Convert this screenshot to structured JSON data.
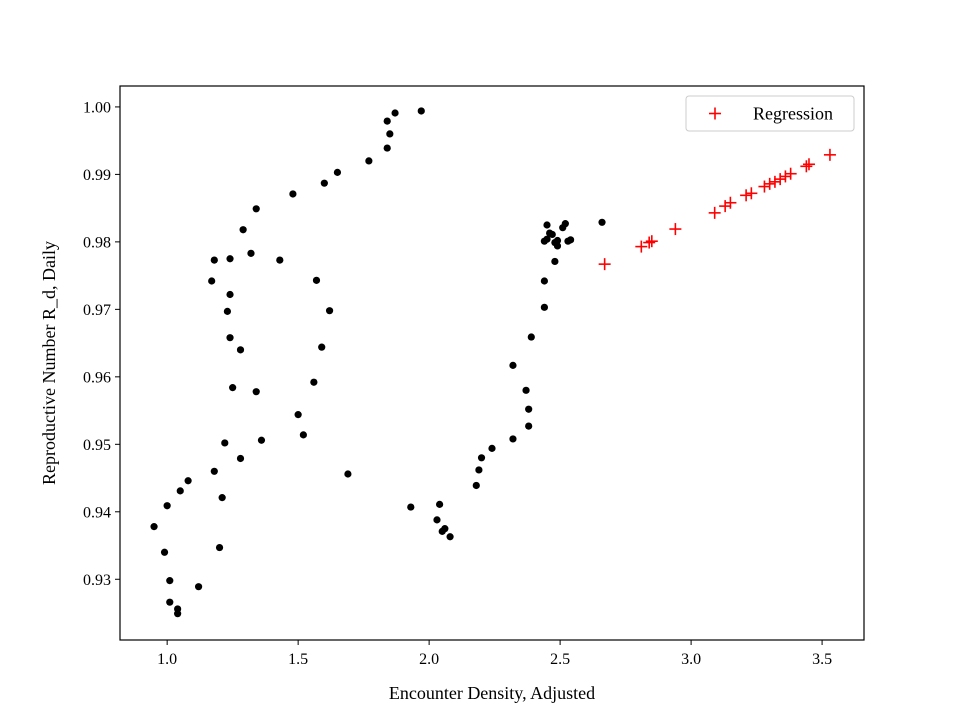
{
  "chart_data": {
    "type": "scatter",
    "title": "",
    "xlabel": "Encounter Density, Adjusted",
    "ylabel": "Reproductive Number R_d, Daily",
    "xlim": [
      0.82,
      3.66
    ],
    "ylim": [
      0.921,
      1.0031
    ],
    "xticks": [
      1.0,
      1.5,
      2.0,
      2.5,
      3.0,
      3.5
    ],
    "xtick_labels": [
      "1.0",
      "1.5",
      "2.0",
      "2.5",
      "3.0",
      "3.5"
    ],
    "yticks": [
      0.93,
      0.94,
      0.95,
      0.96,
      0.97,
      0.98,
      0.99,
      1.0
    ],
    "ytick_labels": [
      "0.93",
      "0.94",
      "0.95",
      "0.96",
      "0.97",
      "0.98",
      "0.99",
      "1.00"
    ],
    "grid": false,
    "legend_position": "top-right",
    "colors": {
      "observed": "#000000",
      "regression": "#ff0000"
    },
    "series": [
      {
        "marker": "dot",
        "color": "#000000",
        "x": [
          0.95,
          0.99,
          1.0,
          1.01,
          1.01,
          1.04,
          1.04,
          1.05,
          1.08,
          1.12,
          1.17,
          1.18,
          1.18,
          1.2,
          1.21,
          1.22,
          1.23,
          1.24,
          1.24,
          1.24,
          1.25,
          1.28,
          1.28,
          1.29,
          1.32,
          1.34,
          1.34,
          1.36,
          1.43,
          1.48,
          1.5,
          1.52,
          1.56,
          1.57,
          1.59,
          1.6,
          1.62,
          1.65,
          1.69,
          1.77,
          1.84,
          1.84,
          1.85,
          1.87,
          1.93,
          1.97,
          2.03,
          2.04,
          2.05,
          2.06,
          2.08,
          2.18,
          2.19,
          2.2,
          2.24,
          2.32,
          2.32,
          2.37,
          2.38,
          2.38,
          2.39,
          2.44,
          2.44,
          2.44,
          2.45,
          2.45,
          2.46,
          2.47,
          2.48,
          2.48,
          2.49,
          2.49,
          2.51,
          2.52,
          2.53,
          2.54,
          2.66
        ],
        "y": [
          0.9378,
          0.934,
          0.9409,
          0.9298,
          0.9266,
          0.9256,
          0.9249,
          0.9431,
          0.9446,
          0.9289,
          0.9742,
          0.9773,
          0.946,
          0.9347,
          0.9421,
          0.9502,
          0.9697,
          0.9775,
          0.9658,
          0.9722,
          0.9584,
          0.964,
          0.9479,
          0.9818,
          0.9783,
          0.9849,
          0.9578,
          0.9506,
          0.9773,
          0.9871,
          0.9544,
          0.9514,
          0.9592,
          0.9743,
          0.9644,
          0.9887,
          0.9698,
          0.9903,
          0.9456,
          0.992,
          0.9939,
          0.9979,
          0.996,
          0.9991,
          0.9407,
          0.9994,
          0.9388,
          0.9411,
          0.9371,
          0.9375,
          0.9363,
          0.9439,
          0.9462,
          0.948,
          0.9494,
          0.9508,
          0.9617,
          0.958,
          0.9552,
          0.9527,
          0.9659,
          0.9703,
          0.9742,
          0.9801,
          0.9804,
          0.9825,
          0.9813,
          0.9811,
          0.9799,
          0.9771,
          0.9794,
          0.9802,
          0.9821,
          0.9827,
          0.9801,
          0.9803,
          0.9829
        ]
      },
      {
        "name": "Regression",
        "marker": "plus",
        "color": "#ff0000",
        "x": [
          2.67,
          2.81,
          2.84,
          2.85,
          2.94,
          3.09,
          3.13,
          3.15,
          3.21,
          3.23,
          3.28,
          3.3,
          3.32,
          3.34,
          3.36,
          3.38,
          3.44,
          3.45,
          3.53
        ],
        "y": [
          0.9767,
          0.9793,
          0.9799,
          0.9801,
          0.9819,
          0.9843,
          0.9853,
          0.9858,
          0.9869,
          0.9872,
          0.9882,
          0.9886,
          0.9889,
          0.9893,
          0.9897,
          0.9901,
          0.9912,
          0.9915,
          0.9929
        ]
      }
    ]
  }
}
